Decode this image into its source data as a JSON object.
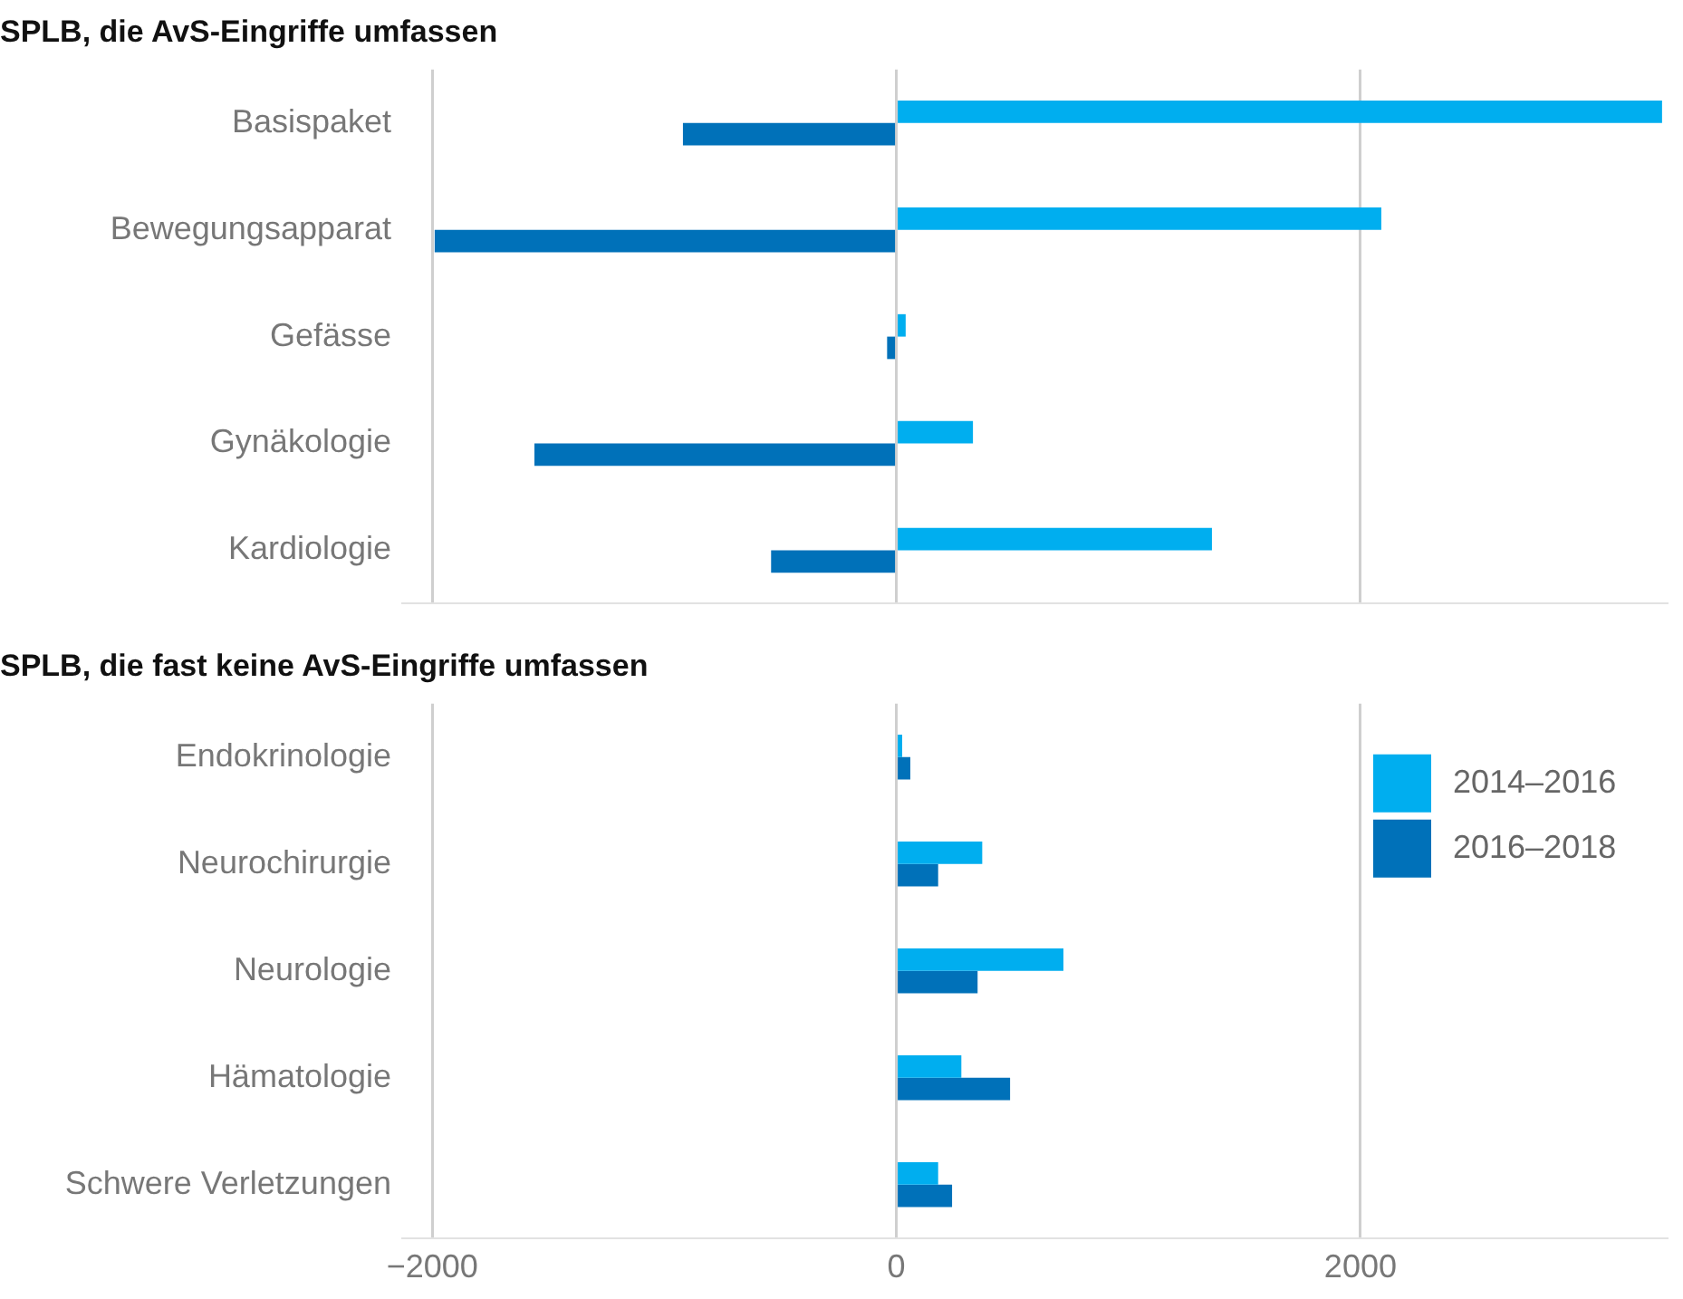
{
  "chart_data": [
    {
      "type": "bar",
      "orientation": "horizontal",
      "title": "SPLB, die AvS-Eingriffe umfassen",
      "categories": [
        "Basispaket",
        "Bewegungsapparat",
        "Gefässe",
        "Gynäkologie",
        "Kardiologie"
      ],
      "series": [
        {
          "color": "#00aeef",
          "values": [
            3300,
            2090,
            40,
            330,
            1360
          ]
        },
        {
          "color": "#0071b9",
          "values": [
            -920,
            -1990,
            -40,
            -1560,
            -540
          ]
        }
      ],
      "xlim": [
        -2130,
        3320
      ],
      "xticks": [
        -2000,
        0,
        2000
      ],
      "grid": "x",
      "tick_labels": "y"
    },
    {
      "type": "bar",
      "orientation": "horizontal",
      "title": "SPLB, die fast keine AvS-Eingriffe umfassen",
      "categories": [
        "Endokrinologie",
        "Neurochirurgie",
        "Neurologie",
        "Hämatologie",
        "Schwere Verletzungen"
      ],
      "series": [
        {
          "name": "2014–2016",
          "color": "#00aeef",
          "values": [
            25,
            370,
            720,
            280,
            180
          ]
        },
        {
          "name": "2016–2018",
          "color": "#0071b9",
          "values": [
            60,
            180,
            350,
            490,
            240
          ]
        }
      ],
      "xlim": [
        -2130,
        3320
      ],
      "xticks": [
        -2000,
        0,
        2000
      ],
      "grid": "x",
      "legend": "top right"
    }
  ]
}
